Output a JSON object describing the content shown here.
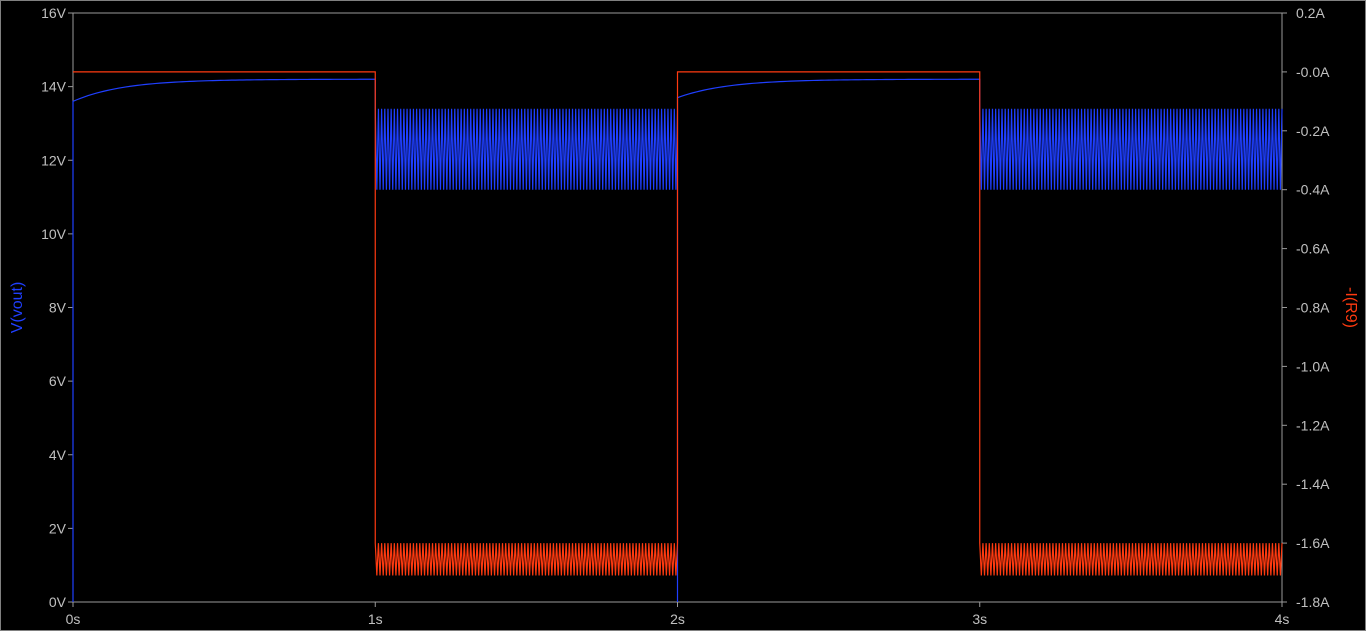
{
  "chart_data": {
    "type": "line",
    "x_axis": {
      "range": [
        0,
        4
      ],
      "unit": "s",
      "ticks": [
        "0s",
        "1s",
        "2s",
        "3s",
        "4s"
      ],
      "tick_values": [
        0,
        1,
        2,
        3,
        4
      ]
    },
    "y_left": {
      "label": "V(vout)",
      "range": [
        0,
        16
      ],
      "ticks": [
        "0V",
        "2V",
        "4V",
        "6V",
        "8V",
        "10V",
        "12V",
        "14V",
        "16V"
      ],
      "tick_values": [
        0,
        2,
        4,
        6,
        8,
        10,
        12,
        14,
        16
      ],
      "color": "#1f3fff"
    },
    "y_right": {
      "label": "-I(R9)",
      "range": [
        -1.8,
        0.2
      ],
      "ticks": [
        "0.2A",
        "-0.0A",
        "-0.2A",
        "-0.4A",
        "-0.6A",
        "-0.8A",
        "-1.0A",
        "-1.2A",
        "-1.4A",
        "-1.6A",
        "-1.8A"
      ],
      "tick_values": [
        0.2,
        0.0,
        -0.2,
        -0.4,
        -0.6,
        -0.8,
        -1.0,
        -1.2,
        -1.4,
        -1.6,
        -1.8
      ],
      "color": "#ff3a10"
    },
    "series": [
      {
        "name": "V(vout)",
        "axis": "left",
        "color": "#1f3fff",
        "segments": [
          {
            "kind": "charge",
            "t0": 0,
            "t1": 1,
            "v_start": 13.6,
            "v_end": 14.2
          },
          {
            "kind": "ripple",
            "t0": 1,
            "t1": 2,
            "min": 11.2,
            "max": 13.4
          },
          {
            "kind": "charge",
            "t0": 2,
            "t1": 3,
            "v_start": 13.7,
            "v_end": 14.2
          },
          {
            "kind": "ripple",
            "t0": 3,
            "t1": 4,
            "min": 11.2,
            "max": 13.4
          }
        ]
      },
      {
        "name": "-I(R9)",
        "axis": "right",
        "color": "#ff3a10",
        "segments": [
          {
            "kind": "flat",
            "t0": 0,
            "t1": 1,
            "value": 0.0
          },
          {
            "kind": "ripple",
            "t0": 1,
            "t1": 2,
            "min": -1.71,
            "max": -1.6
          },
          {
            "kind": "flat",
            "t0": 2,
            "t1": 3,
            "value": 0.0
          },
          {
            "kind": "ripple",
            "t0": 3,
            "t1": 4,
            "min": -1.71,
            "max": -1.6
          }
        ]
      }
    ],
    "background": "#000000",
    "grid": false
  }
}
